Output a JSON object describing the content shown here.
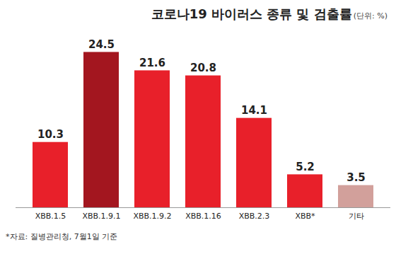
{
  "chart_data": {
    "type": "bar",
    "title": "코로나19 바이러스 종류 및 검출률",
    "subtitle": "(단위: %)",
    "caption": "*자료: 질병관리청, 7월1일 기준",
    "categories": [
      "XBB.1.5",
      "XBB.1.9.1",
      "XBB.1.9.2",
      "XBB.1.16",
      "XBB.2.3",
      "XBB*",
      "기타"
    ],
    "values": [
      10.3,
      24.5,
      21.6,
      20.8,
      14.1,
      5.2,
      3.5
    ],
    "colors": [
      "#e8202a",
      "#a3161f",
      "#e8202a",
      "#e8202a",
      "#e8202a",
      "#e8202a",
      "#d2a09b"
    ],
    "ylim": [
      0,
      26
    ],
    "grid": false,
    "data_labels": true,
    "tick_labels": "x"
  }
}
